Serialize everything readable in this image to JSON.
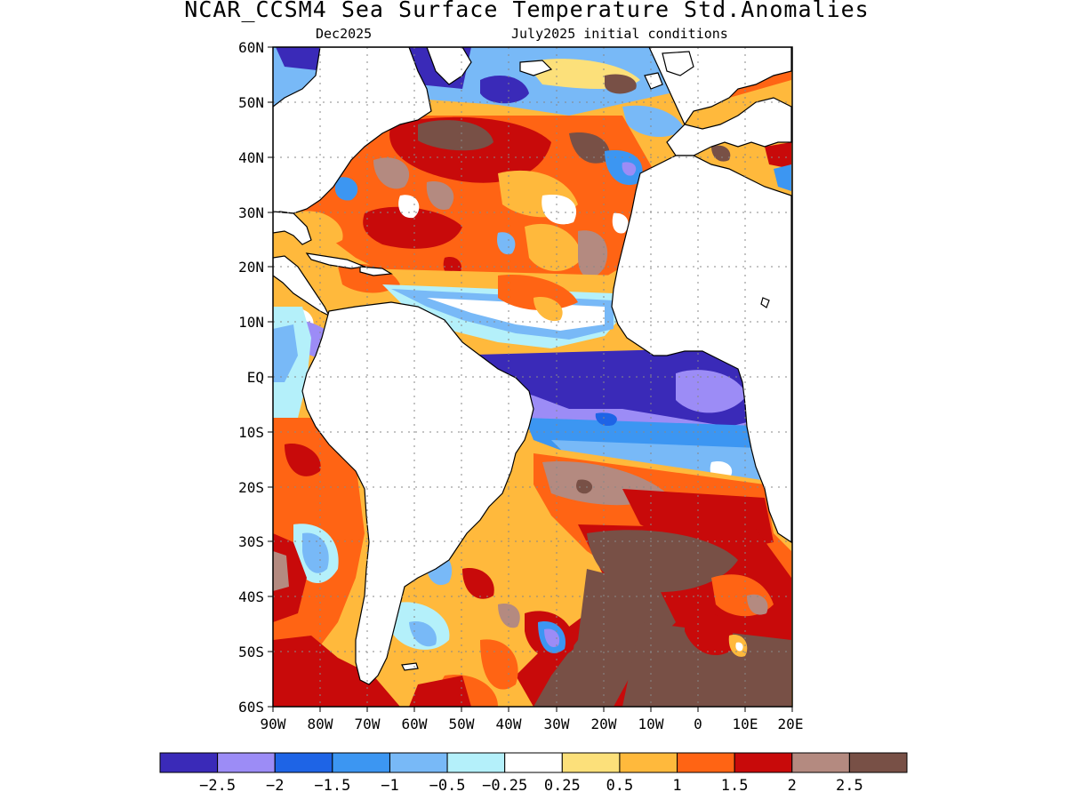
{
  "title": "NCAR_CCSM4 Sea Surface Temperature Std.Anomalies",
  "subtitle_left": "Dec2025",
  "subtitle_right": "July2025 initial conditions",
  "map": {
    "lon_range": [
      -90,
      20
    ],
    "lat_range": [
      -60,
      60
    ],
    "lat_ticks": [
      "60N",
      "50N",
      "40N",
      "30N",
      "20N",
      "10N",
      "EQ",
      "10S",
      "20S",
      "30S",
      "40S",
      "50S",
      "60S"
    ],
    "lon_ticks": [
      "90W",
      "80W",
      "70W",
      "60W",
      "50W",
      "40W",
      "30W",
      "20W",
      "10W",
      "0",
      "10E",
      "20E"
    ]
  },
  "colorbar": {
    "colors": [
      "#3a2ab8",
      "#9c8cf6",
      "#1e64e6",
      "#3c96f2",
      "#78b9f7",
      "#b4f0fa",
      "#ffffff",
      "#fce07a",
      "#ffb93c",
      "#ff6414",
      "#c80a0a",
      "#b48a80",
      "#785046"
    ],
    "labels": [
      "-2.5",
      "-2",
      "-1.5",
      "-1",
      "-0.5",
      "-0.25",
      "0.25",
      "0.5",
      "1",
      "1.5",
      "2",
      "2.5"
    ]
  }
}
